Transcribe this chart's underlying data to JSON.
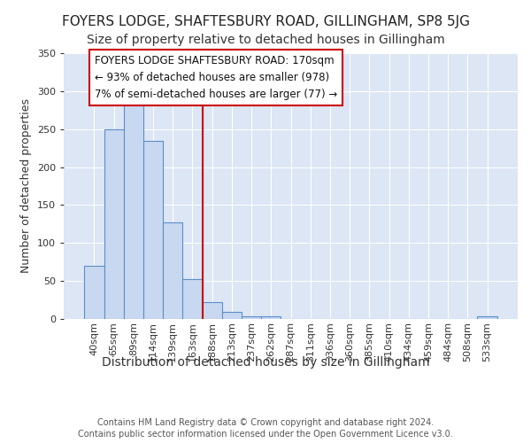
{
  "title": "FOYERS LODGE, SHAFTESBURY ROAD, GILLINGHAM, SP8 5JG",
  "subtitle": "Size of property relative to detached houses in Gillingham",
  "xlabel": "Distribution of detached houses by size in Gillingham",
  "ylabel": "Number of detached properties",
  "categories": [
    "40sqm",
    "65sqm",
    "89sqm",
    "114sqm",
    "139sqm",
    "163sqm",
    "188sqm",
    "213sqm",
    "237sqm",
    "262sqm",
    "287sqm",
    "311sqm",
    "336sqm",
    "360sqm",
    "385sqm",
    "410sqm",
    "434sqm",
    "459sqm",
    "484sqm",
    "508sqm",
    "533sqm"
  ],
  "values": [
    70,
    250,
    289,
    235,
    127,
    53,
    22,
    9,
    4,
    3,
    0,
    0,
    0,
    0,
    0,
    0,
    0,
    0,
    0,
    0,
    3
  ],
  "bar_color": "#c8d8f0",
  "bar_edge_color": "#5b8ec8",
  "red_line_x": 5.5,
  "ylim": [
    0,
    350
  ],
  "yticks": [
    0,
    50,
    100,
    150,
    200,
    250,
    300,
    350
  ],
  "annotation_lines": [
    "FOYERS LODGE SHAFTESBURY ROAD: 170sqm",
    "← 93% of detached houses are smaller (978)",
    "7% of semi-detached houses are larger (77) →"
  ],
  "annotation_box_color": "#ffffff",
  "annotation_box_edge": "#cc0000",
  "footer1": "Contains HM Land Registry data © Crown copyright and database right 2024.",
  "footer2": "Contains public sector information licensed under the Open Government Licence v3.0.",
  "fig_background": "#ffffff",
  "plot_background": "#dce6f5",
  "grid_color": "#ffffff",
  "title_fontsize": 11,
  "subtitle_fontsize": 10,
  "ylabel_fontsize": 9,
  "xlabel_fontsize": 10,
  "tick_fontsize": 8,
  "ann_fontsize": 8.5,
  "footer_fontsize": 7
}
